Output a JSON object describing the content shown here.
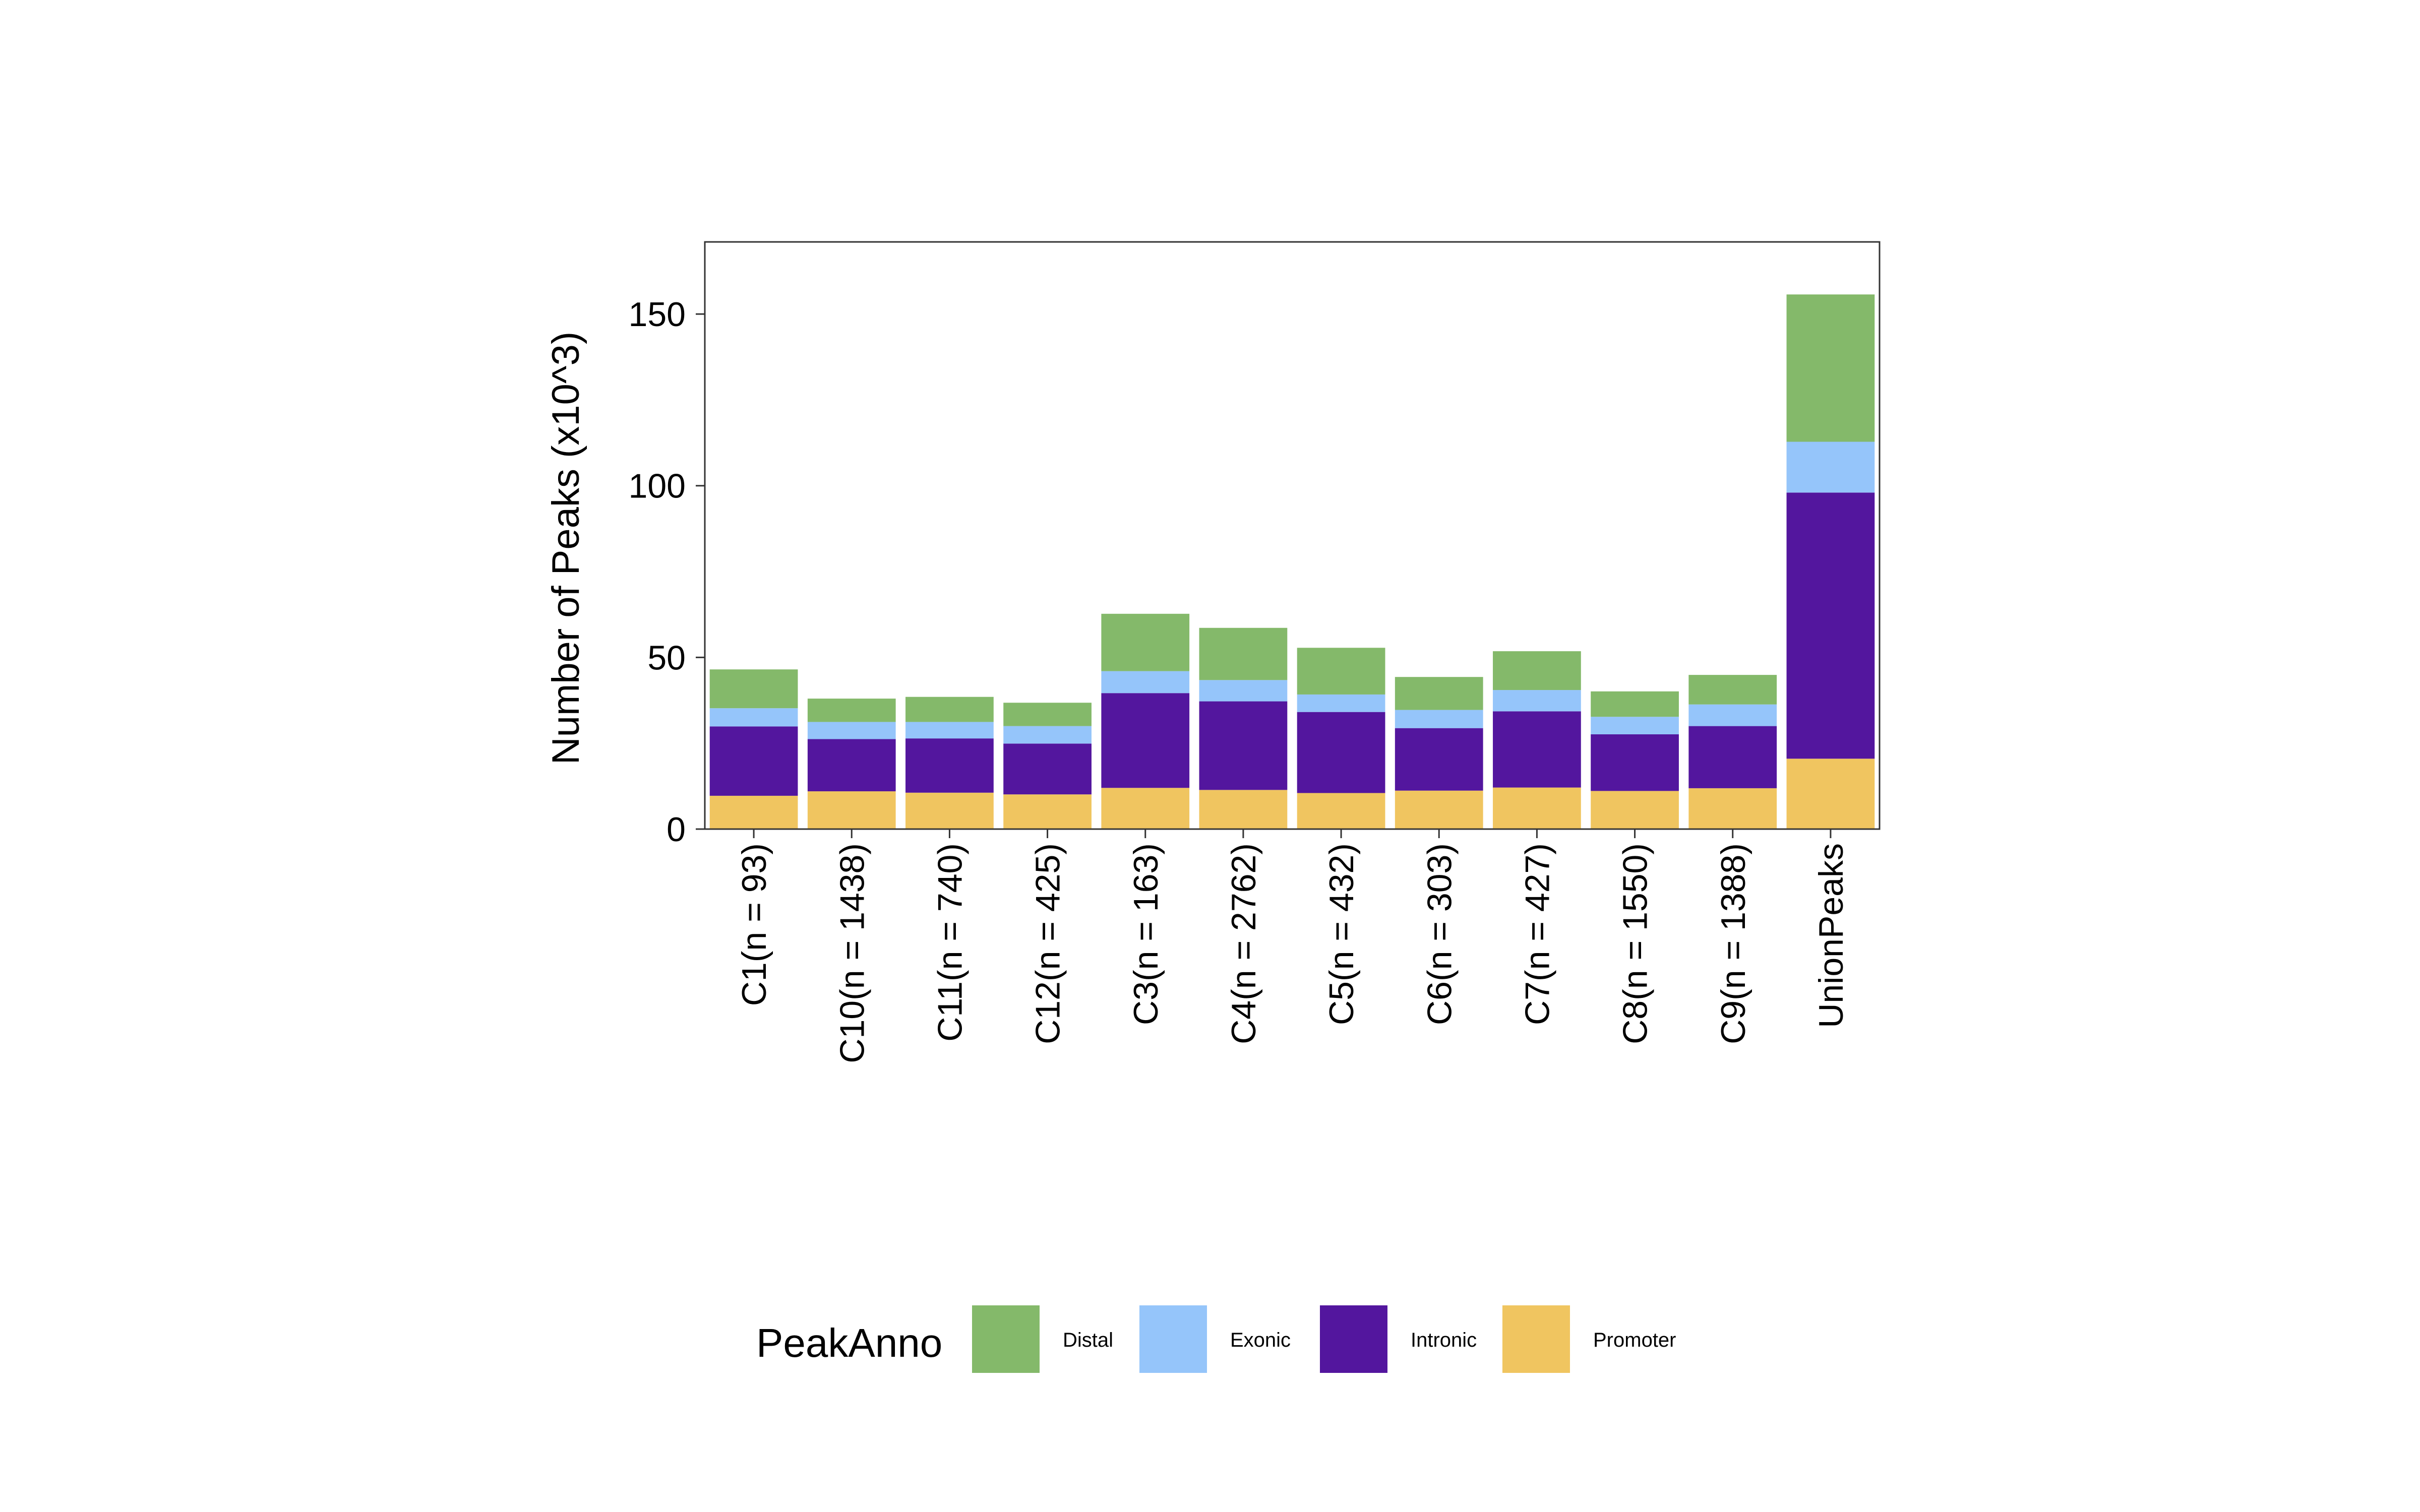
{
  "chart_data": {
    "type": "bar",
    "stacked": true,
    "title": "",
    "xlabel": "",
    "ylabel": "Number of Peaks (x10^3)",
    "ylim": [
      0,
      171
    ],
    "yticks": [
      0,
      50,
      100,
      150
    ],
    "grid": false,
    "legend": {
      "title": "PeakAnno",
      "placement": "bottom"
    },
    "categories": [
      "C1(n = 93)",
      "C10(n = 1438)",
      "C11(n = 740)",
      "C12(n = 425)",
      "C3(n = 163)",
      "C4(n = 2762)",
      "C5(n = 432)",
      "C6(n = 303)",
      "C7(n = 427)",
      "C8(n = 1550)",
      "C9(n = 1388)",
      "UnionPeaks"
    ],
    "series": [
      {
        "name": "Promoter",
        "color": "#F0C560",
        "values": [
          9.7,
          11.0,
          10.6,
          10.1,
          12.0,
          11.4,
          10.5,
          11.2,
          12.1,
          11.1,
          11.9,
          20.5
        ]
      },
      {
        "name": "Intronic",
        "color": "#53169E",
        "values": [
          20.2,
          15.2,
          15.8,
          14.8,
          27.6,
          25.8,
          23.6,
          18.2,
          22.2,
          16.5,
          18.1,
          77.5
        ]
      },
      {
        "name": "Exonic",
        "color": "#95C5FA",
        "values": [
          5.3,
          5.0,
          4.8,
          5.1,
          6.4,
          6.2,
          5.1,
          5.3,
          6.2,
          5.1,
          6.3,
          14.8
        ]
      },
      {
        "name": "Distal",
        "color": "#84B96A",
        "values": [
          11.3,
          6.8,
          7.3,
          6.8,
          16.7,
          15.2,
          13.6,
          9.6,
          11.3,
          7.4,
          8.6,
          42.9
        ]
      }
    ],
    "legend_order": [
      "Distal",
      "Exonic",
      "Intronic",
      "Promoter"
    ]
  }
}
